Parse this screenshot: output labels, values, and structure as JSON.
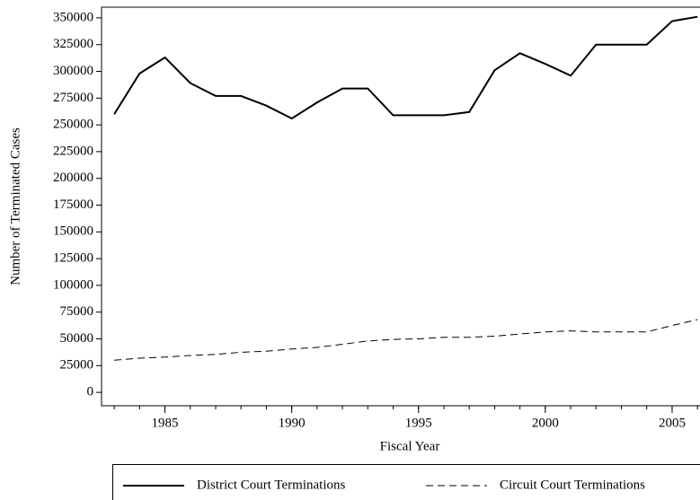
{
  "chart_data": {
    "type": "line",
    "x_label": "Fiscal Year",
    "y_label": "Number of Terminated Cases",
    "x": [
      1983,
      1984,
      1985,
      1986,
      1987,
      1988,
      1989,
      1990,
      1991,
      1992,
      1993,
      1994,
      1995,
      1996,
      1997,
      1998,
      1999,
      2000,
      2001,
      2002,
      2003,
      2004,
      2005,
      2006
    ],
    "series": [
      {
        "name": "District Court Terminations",
        "color": "#000000",
        "dash": "solid",
        "values": [
          260000,
          298000,
          313000,
          289000,
          277000,
          277000,
          268000,
          256000,
          271000,
          284000,
          284000,
          259000,
          259000,
          259000,
          262000,
          301000,
          317000,
          307000,
          296000,
          325000,
          325000,
          325000,
          347000,
          351000
        ]
      },
      {
        "name": "Circuit Court Terminations",
        "color": "#000000",
        "dash": "dashed",
        "values": [
          30000,
          32000,
          33000,
          34500,
          35500,
          37500,
          38500,
          40500,
          42000,
          45000,
          48000,
          49500,
          50000,
          51500,
          51500,
          52500,
          54500,
          56500,
          57500,
          56500,
          56500,
          56500,
          62500,
          68000
        ]
      }
    ],
    "xlim": [
      1982.5,
      2006.1
    ],
    "xticks": [
      1985,
      1990,
      1995,
      2000,
      2005
    ],
    "ylim": [
      -12500,
      360000
    ],
    "yticks": [
      0,
      25000,
      50000,
      75000,
      100000,
      125000,
      150000,
      175000,
      200000,
      225000,
      250000,
      275000,
      300000,
      325000,
      350000
    ],
    "grid": false,
    "legend": "bottom"
  }
}
